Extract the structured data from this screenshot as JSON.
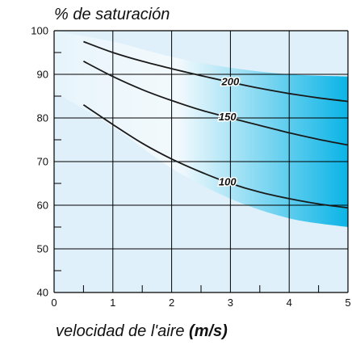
{
  "chart_data": {
    "type": "line",
    "title": "% de saturación",
    "xlabel": "velocidad de l'aire ",
    "xlabel_unit": "(m/s)",
    "xlim": [
      0,
      5
    ],
    "ylim": [
      40,
      100
    ],
    "x_ticks": [
      "0",
      "1",
      "2",
      "3",
      "4",
      "5"
    ],
    "y_ticks": [
      "40",
      "50",
      "60",
      "70",
      "80",
      "90",
      "100"
    ],
    "grid": true,
    "series": [
      {
        "name": "200",
        "x": [
          0.5,
          1,
          1.5,
          2,
          2.5,
          3,
          3.5,
          4,
          4.5,
          5
        ],
        "y": [
          97.5,
          95,
          93,
          91.3,
          89.7,
          88.2,
          86.8,
          85.6,
          84.6,
          83.8
        ]
      },
      {
        "name": "150",
        "x": [
          0.5,
          1,
          1.5,
          2,
          2.5,
          3,
          3.5,
          4,
          4.5,
          5
        ],
        "y": [
          93,
          89.5,
          86.5,
          84,
          81.8,
          80,
          78.3,
          76.6,
          75.1,
          73.8
        ]
      },
      {
        "name": "100",
        "x": [
          0.5,
          1,
          1.5,
          2,
          2.5,
          3,
          3.5,
          4,
          4.5,
          5
        ],
        "y": [
          83,
          78.5,
          74.2,
          70.6,
          67.6,
          65,
          63,
          61.5,
          60.3,
          59.4
        ]
      }
    ],
    "shaded_band": {
      "upper": {
        "x": [
          0,
          1,
          2,
          3,
          4,
          5
        ],
        "y": [
          100,
          97.5,
          94,
          91.5,
          90,
          89.5
        ]
      },
      "lower": {
        "x": [
          0,
          1,
          2,
          3,
          4,
          5
        ],
        "y": [
          86,
          78,
          68.5,
          61.5,
          57,
          55
        ]
      }
    },
    "colors": {
      "background": "#dff0fa",
      "band_light": "#f4fafd",
      "band_dark": "#0ab4e6",
      "grid": "#000000",
      "curve": "#1a1a1a"
    }
  }
}
